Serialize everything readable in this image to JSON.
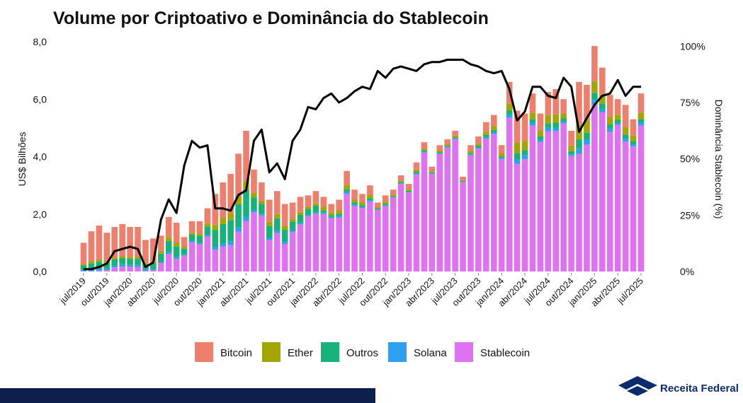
{
  "chart_data": {
    "type": "bar",
    "stacked": true,
    "title": "Volume por Criptoativo e Dominância do Stablecoin",
    "ylabel": "US$ Bilhões",
    "y2label": "Dominância Stablecoin (%)",
    "categories": [
      "jul/2019",
      null,
      null,
      "out/2019",
      null,
      null,
      "jan/2020",
      null,
      null,
      "abr/2020",
      null,
      null,
      "jul/2020",
      null,
      null,
      "out/2020",
      null,
      null,
      "jan/2021",
      null,
      null,
      "abr/2021",
      null,
      null,
      "jul/2021",
      null,
      null,
      "out/2021",
      null,
      null,
      "jan/2022",
      null,
      null,
      "abr/2022",
      null,
      null,
      "jul/2022",
      null,
      null,
      "out/2022",
      null,
      null,
      "jan/2023",
      null,
      null,
      "abr/2023",
      null,
      null,
      "jul/2023",
      null,
      null,
      "out/2023",
      null,
      null,
      "jan/2024",
      null,
      null,
      "abr/2024",
      null,
      null,
      "jul/2024",
      null,
      null,
      "out/2024",
      null,
      null,
      "jan/2025",
      null,
      null,
      "abr/2025",
      null,
      null,
      "jul/2025"
    ],
    "series": [
      {
        "name": "Bitcoin",
        "color": "#ee7f6d",
        "values": [
          0.74,
          1.04,
          1.18,
          0.98,
          1.06,
          1.11,
          1.04,
          1.04,
          0.81,
          0.83,
          0.53,
          0.71,
          0.69,
          0.35,
          0.4,
          0.43,
          0.53,
          1.07,
          1.23,
          1.36,
          1.49,
          1.73,
          0.82,
          0.63,
          0.77,
          0.8,
          0.76,
          0.56,
          0.53,
          0.4,
          0.43,
          0.36,
          0.29,
          0.37,
          0.48,
          0.34,
          0.29,
          0.34,
          0.16,
          0.22,
          0.17,
          0.18,
          0.18,
          0.25,
          0.22,
          0.16,
          0.19,
          0.17,
          0.17,
          0.12,
          0.21,
          0.25,
          0.34,
          0.39,
          0.29,
          0.75,
          1.11,
          0.95,
          0.67,
          0.59,
          0.82,
          0.88,
          0.5,
          0.53,
          1.51,
          1.25,
          1.22,
          0.94,
          0.77,
          0.54,
          0.77,
          0.57,
          0.67
        ]
      },
      {
        "name": "Ether",
        "color": "#a3a500",
        "values": [
          0.05,
          0.07,
          0.08,
          0.07,
          0.07,
          0.07,
          0.07,
          0.07,
          0.05,
          0.05,
          0.1,
          0.13,
          0.13,
          0.06,
          0.07,
          0.08,
          0.1,
          0.19,
          0.22,
          0.25,
          0.27,
          0.31,
          0.15,
          0.12,
          0.14,
          0.15,
          0.14,
          0.1,
          0.1,
          0.07,
          0.08,
          0.12,
          0.1,
          0.12,
          0.16,
          0.11,
          0.1,
          0.11,
          0.05,
          0.07,
          0.06,
          0.06,
          0.06,
          0.08,
          0.07,
          0.05,
          0.06,
          0.06,
          0.06,
          0.04,
          0.07,
          0.08,
          0.11,
          0.13,
          0.1,
          0.25,
          0.37,
          0.32,
          0.22,
          0.2,
          0.27,
          0.29,
          0.17,
          0.18,
          0.5,
          0.42,
          0.41,
          0.31,
          0.26,
          0.18,
          0.26,
          0.19,
          0.22
        ]
      },
      {
        "name": "Outros",
        "color": "#16b27a",
        "values": [
          0.15,
          0.21,
          0.24,
          0.2,
          0.21,
          0.22,
          0.21,
          0.21,
          0.16,
          0.17,
          0.29,
          0.39,
          0.38,
          0.19,
          0.22,
          0.24,
          0.29,
          0.58,
          0.67,
          0.74,
          0.81,
          0.94,
          0.45,
          0.35,
          0.42,
          0.44,
          0.42,
          0.3,
          0.29,
          0.22,
          0.23,
          0.07,
          0.06,
          0.08,
          0.1,
          0.07,
          0.06,
          0.07,
          0.03,
          0.05,
          0.03,
          0.04,
          0.04,
          0.05,
          0.04,
          0.03,
          0.04,
          0.03,
          0.04,
          0.02,
          0.04,
          0.05,
          0.07,
          0.08,
          0.06,
          0.15,
          0.22,
          0.19,
          0.13,
          0.12,
          0.16,
          0.18,
          0.1,
          0.11,
          0.3,
          0.25,
          0.24,
          0.19,
          0.15,
          0.11,
          0.15,
          0.11,
          0.13
        ]
      },
      {
        "name": "Solana",
        "color": "#2f9fef",
        "values": [
          0.05,
          0.07,
          0.07,
          0.05,
          0.07,
          0.08,
          0.06,
          0.07,
          0.06,
          0.05,
          0.04,
          0.06,
          0.06,
          0.04,
          0.04,
          0.04,
          0.05,
          0.1,
          0.11,
          0.13,
          0.14,
          0.16,
          0.07,
          0.05,
          0.07,
          0.07,
          0.07,
          0.05,
          0.04,
          0.03,
          0.04,
          0.05,
          0.04,
          0.05,
          0.06,
          0.05,
          0.04,
          0.05,
          0.02,
          0.03,
          0.02,
          0.02,
          0.02,
          0.04,
          0.03,
          0.02,
          0.02,
          0.02,
          0.02,
          0.02,
          0.03,
          0.04,
          0.05,
          0.05,
          0.03,
          0.1,
          0.15,
          0.13,
          0.1,
          0.08,
          0.12,
          0.11,
          0.07,
          0.06,
          0.2,
          0.16,
          0.17,
          0.12,
          0.11,
          0.07,
          0.1,
          0.08,
          0.1
        ]
      },
      {
        "name": "Stablecoin",
        "color": "#df72f0",
        "values": [
          0.01,
          0.01,
          0.03,
          0.05,
          0.14,
          0.17,
          0.17,
          0.16,
          0.02,
          0.05,
          0.29,
          0.61,
          0.44,
          0.56,
          1.02,
          0.96,
          1.23,
          0.76,
          0.87,
          0.92,
          1.39,
          1.76,
          2.06,
          1.95,
          1.1,
          1.34,
          0.96,
          1.39,
          1.64,
          1.93,
          2.02,
          2.0,
          1.86,
          1.88,
          2.7,
          2.28,
          2.21,
          2.43,
          2.14,
          2.28,
          2.57,
          3.05,
          2.75,
          3.38,
          4.14,
          3.39,
          4.09,
          4.32,
          4.61,
          3.1,
          4.05,
          4.28,
          4.63,
          4.8,
          3.92,
          5.35,
          3.75,
          3.91,
          5.08,
          4.51,
          4.88,
          4.89,
          5.16,
          4.02,
          4.09,
          4.42,
          5.81,
          5.54,
          4.86,
          5.1,
          4.52,
          4.35,
          5.08
        ]
      }
    ],
    "dominance": {
      "color": "#000000",
      "axis": "y2",
      "values": [
        1,
        1,
        2,
        3.5,
        9,
        10,
        11,
        10,
        2,
        4,
        23,
        32,
        26,
        47,
        58,
        55,
        56,
        28,
        28,
        27,
        34,
        36,
        58,
        63,
        44,
        48,
        41,
        58,
        63,
        73,
        72,
        77,
        79,
        75,
        77,
        80,
        82,
        81,
        89,
        86,
        90,
        91,
        90,
        89,
        92,
        93,
        93,
        94,
        94,
        94,
        92,
        91,
        89,
        88,
        89,
        81,
        67,
        71,
        82,
        82,
        78,
        77,
        86,
        82,
        62,
        68,
        74,
        78,
        79,
        85,
        78,
        82,
        82
      ]
    },
    "ylim": [
      0,
      8
    ],
    "yticks": [
      {
        "value": 0,
        "label": "0,0"
      },
      {
        "value": 2,
        "label": "2,0"
      },
      {
        "value": 4,
        "label": "4,0"
      },
      {
        "value": 6,
        "label": "6,0"
      },
      {
        "value": 8,
        "label": "8,0"
      }
    ],
    "y2lim": [
      0,
      102
    ],
    "y2ticks": [
      {
        "value": 0,
        "label": "0%"
      },
      {
        "value": 25,
        "label": "25%"
      },
      {
        "value": 50,
        "label": "50%"
      },
      {
        "value": 75,
        "label": "75%"
      },
      {
        "value": 100,
        "label": "100%"
      }
    ],
    "grid": false,
    "legend": "bottom"
  },
  "logo": "Receita Federal"
}
